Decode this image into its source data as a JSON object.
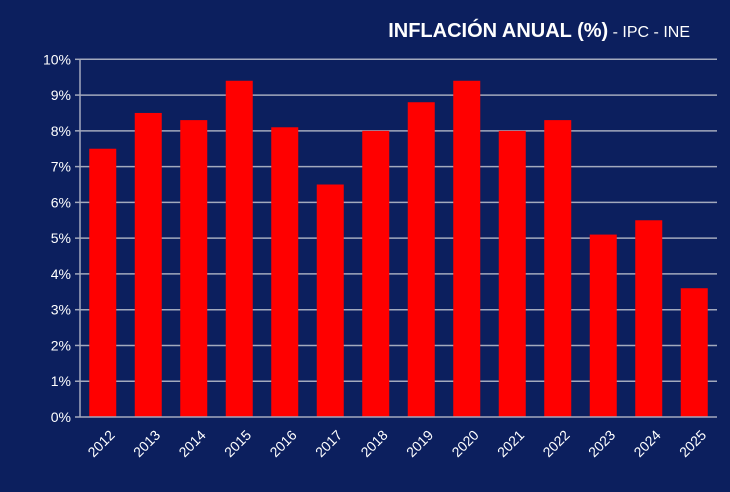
{
  "chart_data": {
    "type": "bar",
    "title": "INFLACIÓN ANUAL (%)",
    "subtitle": "- IPC - INE",
    "xlabel": "",
    "ylabel": "",
    "categories": [
      "2012",
      "2013",
      "2014",
      "2015",
      "2016",
      "2017",
      "2018",
      "2019",
      "2020",
      "2021",
      "2022",
      "2023",
      "2024",
      "2025"
    ],
    "values": [
      7.5,
      8.5,
      8.3,
      9.4,
      8.1,
      6.5,
      8.0,
      8.8,
      9.4,
      8.0,
      8.3,
      5.1,
      5.5,
      3.6
    ],
    "ylim": [
      0,
      10
    ],
    "yticks": [
      "0%",
      "1%",
      "2%",
      "3%",
      "4%",
      "5%",
      "6%",
      "7%",
      "8%",
      "9%",
      "10%"
    ],
    "grid": true,
    "legend": "none",
    "colors": {
      "bar": "#ff0000",
      "background": "#0c1f5e",
      "grid": "#a3a9bd",
      "text": "#ffffff"
    }
  }
}
